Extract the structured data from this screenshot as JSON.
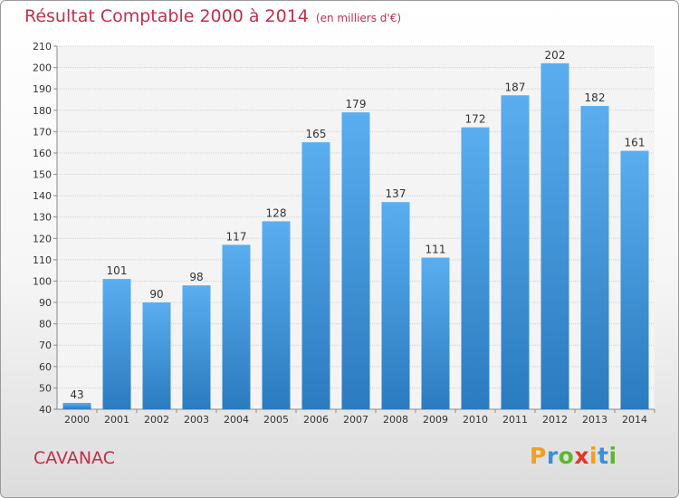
{
  "header": {
    "title": "Résultat Comptable 2000 à 2014",
    "subtitle": "(en milliers d'€)"
  },
  "footer": {
    "place": "CAVANAC",
    "logo_letters": [
      "P",
      "r",
      "o",
      "x",
      "i",
      "t",
      "i"
    ],
    "logo_colors": [
      "#f0a020",
      "#3a8fd8",
      "#5cb82c",
      "#e0352c",
      "#f0a020",
      "#3a8fd8",
      "#5cb82c"
    ]
  },
  "chart_data": {
    "type": "bar",
    "title": "Résultat Comptable 2000 à 2014",
    "subtitle": "(en milliers d'€)",
    "xlabel": "",
    "ylabel": "",
    "categories": [
      "2000",
      "2001",
      "2002",
      "2003",
      "2004",
      "2005",
      "2006",
      "2007",
      "2008",
      "2009",
      "2010",
      "2011",
      "2012",
      "2013",
      "2014"
    ],
    "values": [
      43,
      101,
      90,
      98,
      117,
      128,
      165,
      179,
      137,
      111,
      172,
      187,
      202,
      182,
      161
    ],
    "ylim": [
      40,
      210
    ],
    "yticks": [
      40,
      50,
      60,
      70,
      80,
      90,
      100,
      110,
      120,
      130,
      140,
      150,
      160,
      170,
      180,
      190,
      200,
      210
    ],
    "grid": true,
    "bar_color_top": "#5aaef0",
    "bar_color_bottom": "#2a7bbf"
  }
}
